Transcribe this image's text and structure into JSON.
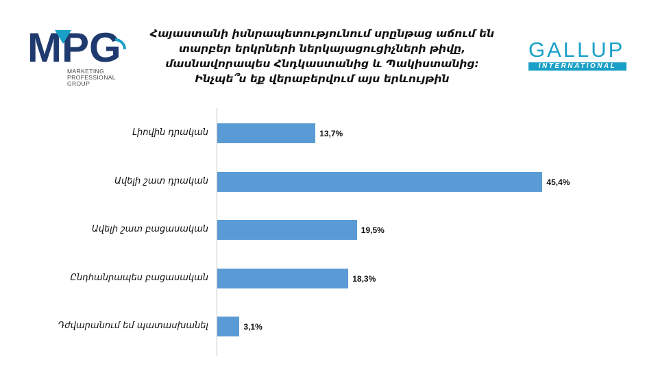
{
  "logos": {
    "mpg": {
      "letters": "MPG",
      "subtitle_lines": [
        "MARKETING",
        "PROFESSIONAL",
        "GROUP"
      ]
    },
    "gallup": {
      "word": "GALLUP",
      "bar_text": "INTERNATIONAL",
      "color": "#1aa0c8"
    }
  },
  "title_lines": [
    "Հայաստանի իսնրապետությունում սրընթաց աճում են",
    "տարբեր երկրների ներկայացուցիչների թիվը,",
    "մասնավորապես Հնդկաստանից և Պակիստանից:",
    "Ինչպե՞ս եք վերաբերվում այս երևույթին"
  ],
  "chart_data": {
    "type": "bar",
    "orientation": "horizontal",
    "categories": [
      "Լիովին դրական",
      "Ավելի շատ դրական",
      "Ավելի շատ բացասական",
      "Ընդհանրապես բացասական",
      "Դժվարանում եմ պատասխանել"
    ],
    "values": [
      13.7,
      45.4,
      19.5,
      18.3,
      3.1
    ],
    "value_labels": [
      "13,7%",
      "45,4%",
      "19,5%",
      "18,3%",
      "3,1%"
    ],
    "bar_color": "#5b9bd5",
    "xlim": [
      0,
      50
    ],
    "grid": false,
    "legend": "none"
  }
}
